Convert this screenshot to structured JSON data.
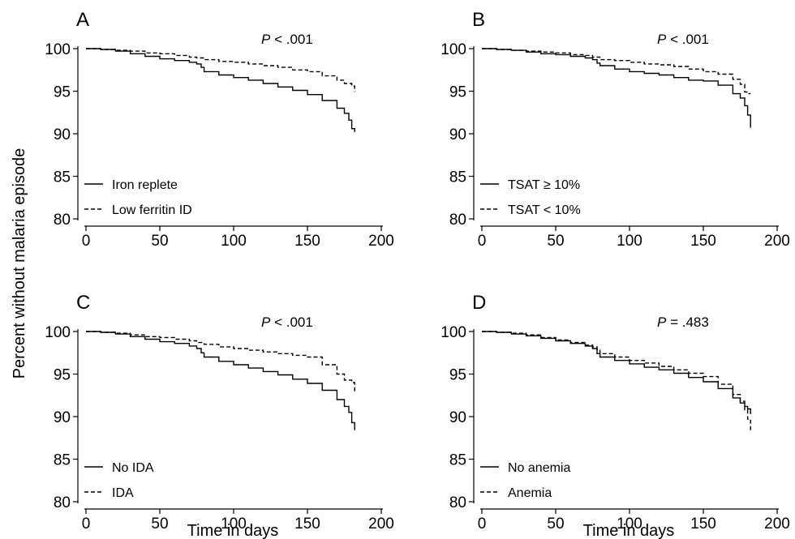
{
  "figure": {
    "ylabel": "Percent without malaria episode",
    "xlabel": "Time in days"
  },
  "chart_data": [
    {
      "type": "line",
      "panel": "A",
      "pvalue_italic": "P",
      "pvalue_rest": " < .001",
      "xlim": [
        0,
        200
      ],
      "ylim": [
        80,
        100
      ],
      "xticks": [
        0,
        50,
        100,
        150,
        200
      ],
      "yticks": [
        80,
        85,
        90,
        95,
        100
      ],
      "legend_position": "bottom-left",
      "series": [
        {
          "name": "Iron replete",
          "style": "solid",
          "points": [
            [
              0,
              100
            ],
            [
              10,
              99.9
            ],
            [
              20,
              99.7
            ],
            [
              30,
              99.4
            ],
            [
              40,
              99.1
            ],
            [
              50,
              98.8
            ],
            [
              60,
              98.6
            ],
            [
              70,
              98.4
            ],
            [
              75,
              98.2
            ],
            [
              78,
              97.8
            ],
            [
              80,
              97.3
            ],
            [
              90,
              96.9
            ],
            [
              100,
              96.6
            ],
            [
              110,
              96.3
            ],
            [
              120,
              95.9
            ],
            [
              130,
              95.5
            ],
            [
              140,
              95.1
            ],
            [
              150,
              94.6
            ],
            [
              160,
              93.9
            ],
            [
              170,
              93.0
            ],
            [
              175,
              92.4
            ],
            [
              178,
              91.6
            ],
            [
              180,
              90.6
            ],
            [
              182,
              90.2
            ]
          ]
        },
        {
          "name": "Low ferritin ID",
          "style": "dashed",
          "points": [
            [
              0,
              100
            ],
            [
              10,
              99.9
            ],
            [
              20,
              99.8
            ],
            [
              30,
              99.7
            ],
            [
              40,
              99.5
            ],
            [
              50,
              99.4
            ],
            [
              60,
              99.2
            ],
            [
              70,
              99.0
            ],
            [
              75,
              98.9
            ],
            [
              80,
              98.7
            ],
            [
              90,
              98.5
            ],
            [
              100,
              98.4
            ],
            [
              110,
              98.2
            ],
            [
              120,
              98.0
            ],
            [
              130,
              97.8
            ],
            [
              140,
              97.5
            ],
            [
              150,
              97.3
            ],
            [
              160,
              96.8
            ],
            [
              170,
              96.3
            ],
            [
              175,
              95.9
            ],
            [
              180,
              95.6
            ],
            [
              182,
              94.9
            ]
          ]
        }
      ]
    },
    {
      "type": "line",
      "panel": "B",
      "pvalue_italic": "P",
      "pvalue_rest": " < .001",
      "xlim": [
        0,
        200
      ],
      "ylim": [
        80,
        100
      ],
      "xticks": [
        0,
        50,
        100,
        150,
        200
      ],
      "yticks": [
        80,
        85,
        90,
        95,
        100
      ],
      "legend_position": "bottom-left",
      "series": [
        {
          "name": "TSAT ≥ 10%",
          "style": "solid",
          "points": [
            [
              0,
              100
            ],
            [
              10,
              99.9
            ],
            [
              20,
              99.8
            ],
            [
              30,
              99.6
            ],
            [
              40,
              99.4
            ],
            [
              50,
              99.3
            ],
            [
              60,
              99.1
            ],
            [
              70,
              98.9
            ],
            [
              75,
              98.7
            ],
            [
              78,
              98.3
            ],
            [
              80,
              98.0
            ],
            [
              90,
              97.6
            ],
            [
              100,
              97.3
            ],
            [
              110,
              97.1
            ],
            [
              120,
              96.9
            ],
            [
              130,
              96.6
            ],
            [
              140,
              96.3
            ],
            [
              150,
              96.2
            ],
            [
              160,
              95.7
            ],
            [
              170,
              94.7
            ],
            [
              175,
              94.2
            ],
            [
              178,
              93.3
            ],
            [
              180,
              92.2
            ],
            [
              182,
              90.7
            ]
          ]
        },
        {
          "name": "TSAT < 10%",
          "style": "dashed",
          "points": [
            [
              0,
              100
            ],
            [
              10,
              99.9
            ],
            [
              20,
              99.8
            ],
            [
              30,
              99.7
            ],
            [
              40,
              99.6
            ],
            [
              50,
              99.5
            ],
            [
              60,
              99.3
            ],
            [
              70,
              99.2
            ],
            [
              75,
              99.0
            ],
            [
              80,
              98.7
            ],
            [
              90,
              98.6
            ],
            [
              100,
              98.4
            ],
            [
              110,
              98.2
            ],
            [
              120,
              98.1
            ],
            [
              130,
              97.9
            ],
            [
              140,
              97.6
            ],
            [
              150,
              97.3
            ],
            [
              160,
              97.0
            ],
            [
              170,
              96.4
            ],
            [
              175,
              95.8
            ],
            [
              178,
              94.9
            ],
            [
              180,
              94.7
            ],
            [
              182,
              94.7
            ]
          ]
        }
      ]
    },
    {
      "type": "line",
      "panel": "C",
      "pvalue_italic": "P",
      "pvalue_rest": " < .001",
      "xlim": [
        0,
        200
      ],
      "ylim": [
        80,
        100
      ],
      "xticks": [
        0,
        50,
        100,
        150,
        200
      ],
      "yticks": [
        80,
        85,
        90,
        95,
        100
      ],
      "legend_position": "bottom-left",
      "series": [
        {
          "name": "No IDA",
          "style": "solid",
          "points": [
            [
              0,
              100
            ],
            [
              10,
              99.9
            ],
            [
              20,
              99.7
            ],
            [
              30,
              99.4
            ],
            [
              40,
              99.1
            ],
            [
              50,
              98.8
            ],
            [
              60,
              98.6
            ],
            [
              70,
              98.3
            ],
            [
              75,
              98.0
            ],
            [
              78,
              97.5
            ],
            [
              80,
              97.0
            ],
            [
              90,
              96.5
            ],
            [
              100,
              96.1
            ],
            [
              110,
              95.7
            ],
            [
              120,
              95.3
            ],
            [
              130,
              94.9
            ],
            [
              140,
              94.4
            ],
            [
              150,
              93.9
            ],
            [
              160,
              93.1
            ],
            [
              170,
              92.0
            ],
            [
              175,
              91.2
            ],
            [
              178,
              90.5
            ],
            [
              180,
              89.3
            ],
            [
              182,
              88.4
            ]
          ]
        },
        {
          "name": "IDA",
          "style": "dashed",
          "points": [
            [
              0,
              100
            ],
            [
              10,
              99.9
            ],
            [
              20,
              99.8
            ],
            [
              30,
              99.6
            ],
            [
              40,
              99.4
            ],
            [
              50,
              99.3
            ],
            [
              60,
              99.1
            ],
            [
              70,
              98.9
            ],
            [
              75,
              98.7
            ],
            [
              80,
              98.5
            ],
            [
              90,
              98.2
            ],
            [
              100,
              98.0
            ],
            [
              110,
              97.8
            ],
            [
              120,
              97.6
            ],
            [
              130,
              97.4
            ],
            [
              140,
              97.2
            ],
            [
              150,
              97.0
            ],
            [
              160,
              96.1
            ],
            [
              170,
              95.0
            ],
            [
              175,
              94.3
            ],
            [
              180,
              94.0
            ],
            [
              182,
              92.9
            ]
          ]
        }
      ]
    },
    {
      "type": "line",
      "panel": "D",
      "pvalue_italic": "P",
      "pvalue_rest": " = .483",
      "xlim": [
        0,
        200
      ],
      "ylim": [
        80,
        100
      ],
      "xticks": [
        0,
        50,
        100,
        150,
        200
      ],
      "yticks": [
        80,
        85,
        90,
        95,
        100
      ],
      "legend_position": "bottom-left",
      "series": [
        {
          "name": "No anemia",
          "style": "solid",
          "points": [
            [
              0,
              100
            ],
            [
              10,
              99.9
            ],
            [
              20,
              99.7
            ],
            [
              30,
              99.5
            ],
            [
              40,
              99.2
            ],
            [
              50,
              98.9
            ],
            [
              60,
              98.6
            ],
            [
              70,
              98.3
            ],
            [
              75,
              98.0
            ],
            [
              78,
              97.4
            ],
            [
              80,
              97.0
            ],
            [
              90,
              96.6
            ],
            [
              100,
              96.2
            ],
            [
              110,
              95.8
            ],
            [
              120,
              95.5
            ],
            [
              130,
              95.1
            ],
            [
              140,
              94.6
            ],
            [
              150,
              94.1
            ],
            [
              160,
              93.3
            ],
            [
              170,
              92.2
            ],
            [
              175,
              91.6
            ],
            [
              178,
              91.2
            ],
            [
              180,
              90.9
            ],
            [
              182,
              90.3
            ]
          ]
        },
        {
          "name": "Anemia",
          "style": "dashed",
          "points": [
            [
              0,
              100
            ],
            [
              10,
              99.9
            ],
            [
              20,
              99.8
            ],
            [
              30,
              99.6
            ],
            [
              40,
              99.3
            ],
            [
              50,
              99.0
            ],
            [
              60,
              98.7
            ],
            [
              70,
              98.4
            ],
            [
              75,
              98.2
            ],
            [
              78,
              97.8
            ],
            [
              80,
              97.4
            ],
            [
              90,
              97.0
            ],
            [
              100,
              96.6
            ],
            [
              110,
              96.3
            ],
            [
              120,
              95.9
            ],
            [
              130,
              95.5
            ],
            [
              140,
              95.1
            ],
            [
              150,
              94.7
            ],
            [
              160,
              93.8
            ],
            [
              170,
              92.6
            ],
            [
              175,
              91.8
            ],
            [
              178,
              90.8
            ],
            [
              180,
              89.7
            ],
            [
              182,
              88.4
            ]
          ]
        }
      ]
    }
  ]
}
